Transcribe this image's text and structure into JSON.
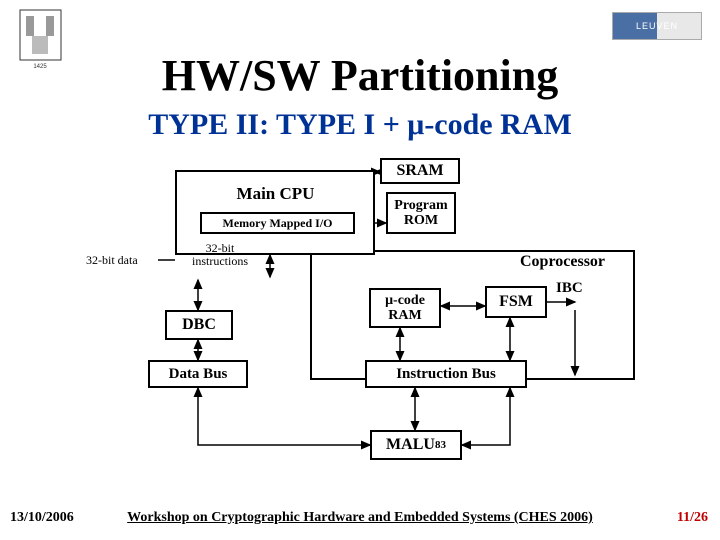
{
  "title": "HW/SW Partitioning",
  "subtitle": "TYPE II: TYPE I + μ-code RAM",
  "logo_right_text": "LEUVEN",
  "boxes": {
    "sram": "SRAM",
    "maincpu": "Main CPU",
    "memio": "Memory Mapped I/O",
    "progrom": "Program ROM",
    "copro": "Coprocessor",
    "mucode": "μ-code RAM",
    "fsm": "FSM",
    "ibc": "IBC",
    "dbc": "DBC",
    "databus": "Data Bus",
    "instrbus": "Instruction Bus",
    "malu": "MALU",
    "malu_sub": "83"
  },
  "labels": {
    "data32": "32-bit data",
    "instr32": "32-bit instructions"
  },
  "footer": {
    "date": "13/10/2006",
    "text": "Workshop on Cryptographic Hardware and Embedded Systems (CHES 2006)",
    "page": "11/26"
  },
  "colors": {
    "subtitle": "#003296",
    "pagenum": "#c00000"
  }
}
